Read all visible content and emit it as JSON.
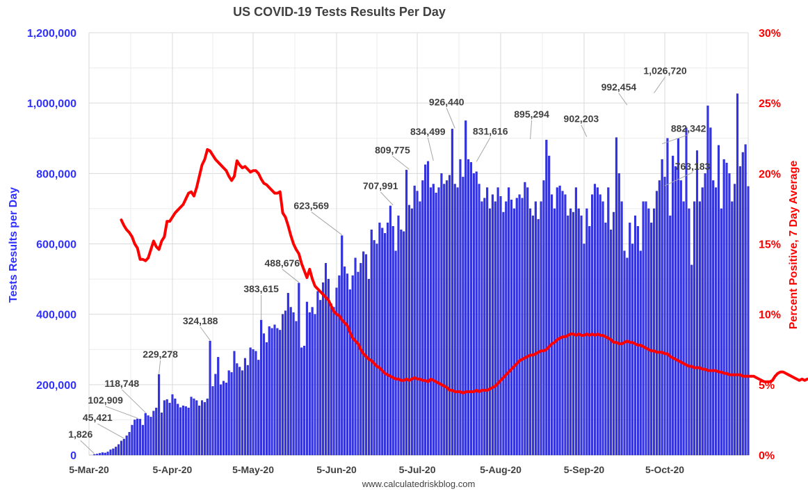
{
  "chart_data": {
    "type": "bar",
    "title": "US COVID-19 Tests Results Per Day",
    "source": "www.calculatedriskblog.com",
    "ylabel_left": "Tests Results per Day",
    "ylabel_right": "Percent Positive, 7 Day Average",
    "left_ticks": [
      "0",
      "200,000",
      "400,000",
      "600,000",
      "800,000",
      "1,000,000",
      "1,200,000"
    ],
    "right_ticks": [
      "0%",
      "5%",
      "10%",
      "15%",
      "20%",
      "25%",
      "30%"
    ],
    "ylim_left": [
      0,
      1200000
    ],
    "ylim_right": [
      0,
      30
    ],
    "x_ticks": [
      "5-Mar-20",
      "5-Apr-20",
      "5-May-20",
      "5-Jun-20",
      "5-Jul-20",
      "5-Aug-20",
      "5-Sep-20",
      "5-Oct-20"
    ],
    "x_start": "2020-03-05",
    "x_end": "2020-11-05",
    "grid": true,
    "colors": {
      "bars": "#3333ee",
      "bar_edge": "#1a1aaa",
      "line": "#ff0000",
      "left_axis": "#3030ff",
      "right_axis": "#ff0000"
    },
    "series": [
      {
        "name": "Tests Results per Day",
        "kind": "bar",
        "axis": "left",
        "start": "2020-03-07",
        "values": [
          1826,
          3000,
          5000,
          7000,
          6000,
          9000,
          15000,
          18000,
          23000,
          30000,
          40000,
          45421,
          55000,
          65000,
          85000,
          100000,
          102909,
          102000,
          85000,
          118748,
          112000,
          108000,
          125000,
          134000,
          229278,
          120000,
          155000,
          158000,
          148000,
          172000,
          160000,
          145000,
          135000,
          140000,
          138000,
          134000,
          165000,
          160000,
          155000,
          140000,
          155000,
          150000,
          160000,
          324188,
          195000,
          230000,
          278000,
          200000,
          210000,
          205000,
          240000,
          235000,
          295000,
          260000,
          250000,
          240000,
          275000,
          255000,
          305000,
          300000,
          295000,
          270000,
          383615,
          345000,
          320000,
          365000,
          360000,
          370000,
          360000,
          355000,
          400000,
          410000,
          460000,
          420000,
          405000,
          380000,
          488676,
          305000,
          310000,
          435000,
          405000,
          420000,
          400000,
          465000,
          440000,
          490000,
          545000,
          500000,
          430000,
          420000,
          475000,
          510000,
          623569,
          535000,
          515000,
          470000,
          510000,
          560000,
          520000,
          545000,
          578000,
          570000,
          500000,
          640000,
          610000,
          600000,
          660000,
          645000,
          630000,
          660000,
          707991,
          650000,
          580000,
          680000,
          640000,
          635000,
          809775,
          710000,
          700000,
          765000,
          750000,
          720000,
          780000,
          825000,
          834499,
          760000,
          770000,
          745000,
          760000,
          800000,
          770000,
          780000,
          795000,
          926440,
          770000,
          760000,
          840000,
          790000,
          950000,
          840000,
          831616,
          800000,
          805000,
          770000,
          720000,
          730000,
          760000,
          700000,
          740000,
          720000,
          760000,
          735000,
          690000,
          720000,
          760000,
          725000,
          700000,
          730000,
          740000,
          730000,
          775000,
          760000,
          700000,
          680000,
          720000,
          670000,
          720000,
          780000,
          895294,
          850000,
          740000,
          700000,
          760000,
          765000,
          750000,
          740000,
          680000,
          700000,
          690000,
          760000,
          700000,
          680000,
          600000,
          700000,
          650000,
          740000,
          770000,
          760000,
          740000,
          720000,
          660000,
          760000,
          640000,
          690000,
          902203,
          800000,
          720000,
          580000,
          560000,
          660000,
          600000,
          680000,
          650000,
          580000,
          720000,
          720000,
          700000,
          660000,
          700000,
          750000,
          780000,
          840000,
          790000,
          900000,
          680000,
          850000,
          820000,
          900000,
          780000,
          720000,
          930000,
          700000,
          540000,
          720000,
          865000,
          720000,
          760000,
          800000,
          992454,
          930000,
          780000,
          760000,
          880000,
          700000,
          840000,
          830000,
          800000,
          720000,
          770000,
          1026720,
          820000,
          860000,
          882342,
          763183
        ]
      },
      {
        "name": "Percent Positive, 7 Day Average",
        "kind": "line",
        "axis": "right",
        "start": "2020-03-17",
        "values": [
          16.7,
          16.3,
          16.0,
          15.8,
          15.5,
          15.0,
          14.7,
          13.9,
          13.9,
          13.8,
          14.0,
          14.6,
          15.2,
          14.8,
          14.6,
          15.2,
          15.5,
          16.6,
          16.6,
          16.9,
          17.2,
          17.4,
          17.6,
          17.8,
          18.2,
          18.6,
          18.7,
          18.4,
          19.0,
          19.8,
          20.6,
          21.0,
          21.7,
          21.6,
          21.3,
          21.0,
          20.8,
          20.6,
          20.4,
          20.2,
          19.8,
          19.5,
          19.8,
          20.9,
          20.6,
          20.4,
          20.5,
          20.3,
          20.1,
          20.2,
          20.2,
          20.0,
          19.6,
          19.3,
          19.2,
          19.0,
          18.8,
          18.6,
          18.6,
          18.7,
          17.2,
          16.9,
          16.3,
          15.6,
          15.0,
          14.6,
          14.3,
          13.6,
          13.1,
          12.6,
          13.2,
          12.5,
          12.0,
          11.8,
          11.6,
          11.4,
          11.2,
          11.0,
          10.6,
          10.2,
          10.0,
          9.9,
          9.6,
          9.4,
          9.2,
          8.7,
          8.3,
          8.1,
          7.9,
          7.5,
          7.2,
          7.0,
          6.8,
          6.7,
          6.5,
          6.3,
          6.2,
          6.0,
          5.8,
          5.7,
          5.6,
          5.5,
          5.4,
          5.4,
          5.3,
          5.3,
          5.4,
          5.3,
          5.4,
          5.5,
          5.4,
          5.4,
          5.3,
          5.3,
          5.2,
          5.4,
          5.3,
          5.2,
          5.1,
          5.0,
          4.9,
          4.8,
          4.6,
          4.6,
          4.5,
          4.5,
          4.5,
          4.4,
          4.5,
          4.5,
          4.5,
          4.5,
          4.6,
          4.5,
          4.6,
          4.6,
          4.6,
          4.7,
          4.8,
          4.9,
          5.1,
          5.3,
          5.5,
          5.7,
          5.9,
          6.1,
          6.3,
          6.5,
          6.7,
          6.8,
          6.9,
          7.0,
          7.1,
          7.1,
          7.2,
          7.3,
          7.4,
          7.4,
          7.5,
          7.7,
          7.9,
          8.0,
          8.2,
          8.3,
          8.4,
          8.4,
          8.5,
          8.6,
          8.6,
          8.5,
          8.6,
          8.5,
          8.5,
          8.6,
          8.5,
          8.6,
          8.5,
          8.6,
          8.5,
          8.5,
          8.4,
          8.3,
          8.2,
          8.0,
          8.0,
          7.9,
          7.9,
          8.0,
          8.1,
          8.0,
          8.0,
          7.9,
          7.8,
          7.8,
          7.7,
          7.6,
          7.5,
          7.4,
          7.4,
          7.3,
          7.3,
          7.3,
          7.2,
          7.2,
          7.0,
          6.9,
          6.8,
          6.7,
          6.6,
          6.5,
          6.4,
          6.3,
          6.3,
          6.2,
          6.2,
          6.2,
          6.1,
          6.1,
          6.0,
          6.0,
          6.0,
          6.0,
          5.9,
          5.9,
          5.8,
          5.8,
          5.7,
          5.7,
          5.7,
          5.7,
          5.7,
          5.6,
          5.6,
          5.6,
          5.6,
          5.6,
          5.5,
          5.4,
          5.3,
          5.2,
          5.2,
          5.2,
          5.3,
          5.6,
          5.8,
          5.9,
          5.9,
          5.8,
          5.7,
          5.6,
          5.5,
          5.4,
          5.3,
          5.4,
          5.3,
          5.4,
          5.4,
          5.5,
          5.3,
          5.0,
          5.0,
          5.2,
          5.1,
          5.2,
          5.0,
          5.2,
          5.1,
          5.1,
          5.1,
          5.2
        ]
      }
    ],
    "annotations": [
      {
        "label": "1,826",
        "date": "2020-03-07",
        "value": 1826,
        "tx": -20,
        "ty": -24
      },
      {
        "label": "45,421",
        "date": "2020-03-18",
        "value": 45421,
        "tx": -38,
        "ty": -26
      },
      {
        "label": "102,909",
        "date": "2020-03-23",
        "value": 102909,
        "tx": -46,
        "ty": -22
      },
      {
        "label": "118,748",
        "date": "2020-03-26",
        "value": 118748,
        "tx": -34,
        "ty": -38
      },
      {
        "label": "229,278",
        "date": "2020-03-31",
        "value": 229278,
        "tx": 2,
        "ty": -24
      },
      {
        "label": "324,188",
        "date": "2020-04-19",
        "value": 324188,
        "tx": -14,
        "ty": -24
      },
      {
        "label": "383,615",
        "date": "2020-05-08",
        "value": 383615,
        "tx": 0,
        "ty": -40
      },
      {
        "label": "488,676",
        "date": "2020-05-22",
        "value": 488676,
        "tx": -24,
        "ty": -24
      },
      {
        "label": "623,569",
        "date": "2020-06-07",
        "value": 623569,
        "tx": -44,
        "ty": -38
      },
      {
        "label": "707,991",
        "date": "2020-06-26",
        "value": 707991,
        "tx": -18,
        "ty": -24
      },
      {
        "label": "809,775",
        "date": "2020-07-02",
        "value": 809775,
        "tx": -24,
        "ty": -24
      },
      {
        "label": "834,499",
        "date": "2020-07-11",
        "value": 834499,
        "tx": -8,
        "ty": -38
      },
      {
        "label": "926,440",
        "date": "2020-07-19",
        "value": 926440,
        "tx": -12,
        "ty": -34
      },
      {
        "label": "831,616",
        "date": "2020-07-27",
        "value": 831616,
        "tx": 20,
        "ty": -40
      },
      {
        "label": "895,294",
        "date": "2020-08-16",
        "value": 895294,
        "tx": 2,
        "ty": -32
      },
      {
        "label": "902,203",
        "date": "2020-09-06",
        "value": 902203,
        "tx": -8,
        "ty": -22
      },
      {
        "label": "992,454",
        "date": "2020-09-21",
        "value": 992454,
        "tx": -12,
        "ty": -22
      },
      {
        "label": "1,026,720",
        "date": "2020-10-01",
        "value": 1026720,
        "tx": 16,
        "ty": -28
      },
      {
        "label": "882,342",
        "date": "2020-10-04",
        "value": 882342,
        "tx": 38,
        "ty": -18
      },
      {
        "label": "763,183",
        "date": "2020-10-05",
        "value": 763183,
        "tx": 40,
        "ty": -24
      }
    ]
  }
}
